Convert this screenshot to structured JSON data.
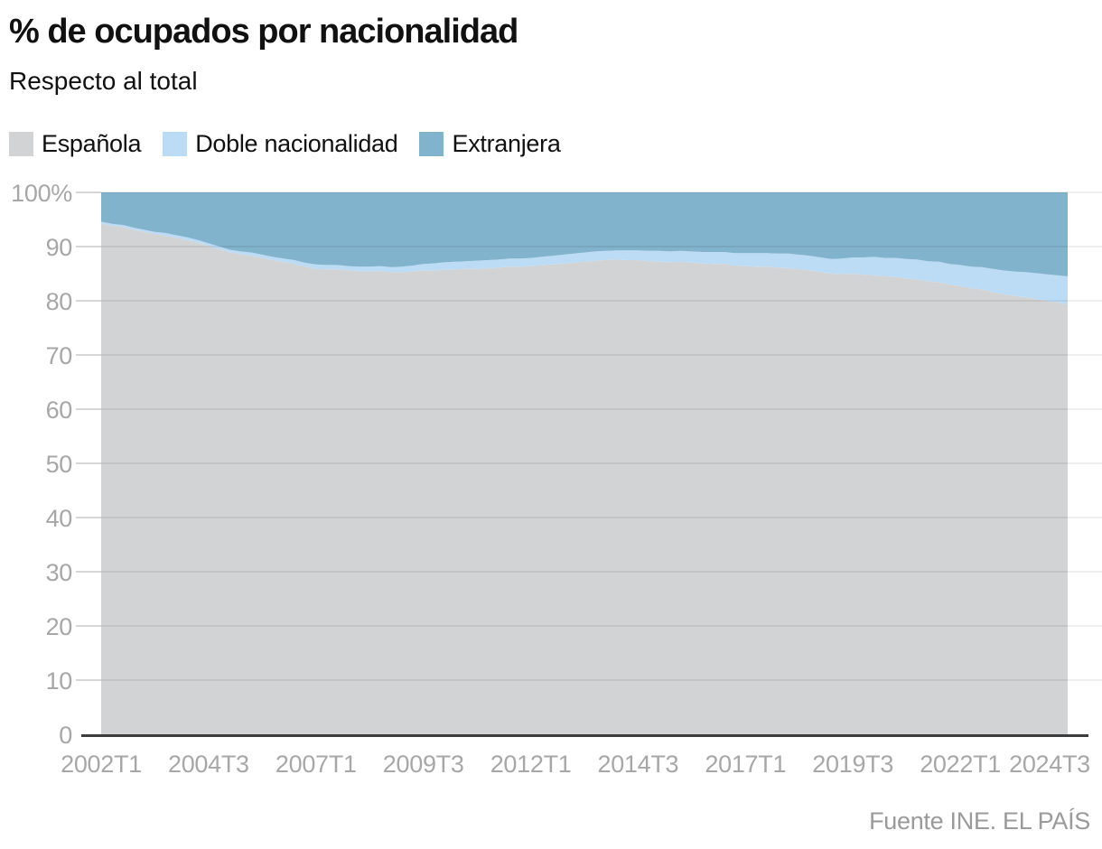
{
  "header": {
    "title": "% de ocupados por nacionalidad",
    "subtitle": "Respecto al total"
  },
  "legend": {
    "items": [
      {
        "label": "Española",
        "color": "#d2d3d4"
      },
      {
        "label": "Doble nacionalidad",
        "color": "#bcdcf5"
      },
      {
        "label": "Extranjera",
        "color": "#81b3cd"
      }
    ]
  },
  "footer": {
    "source": "Fuente INE. EL PAÍS"
  },
  "colors": {
    "axis_line": "#3c3c3c",
    "axis_label": "#a7a7a7",
    "tick": "#d6d6d6",
    "grid_overlay": "rgba(0,0,0,0.09)",
    "grid_right_margin": "#ebebeb"
  },
  "chart_data": {
    "type": "area",
    "stacked": true,
    "total": 100,
    "title": "% de ocupados por nacionalidad",
    "subtitle": "Respecto al total",
    "x_start": "2002T1",
    "x_end": "2024T3",
    "x_frequency": "quarterly",
    "points_count": 91,
    "ylim": [
      0,
      100
    ],
    "y_tick_labels": [
      "100%",
      "90",
      "80",
      "70",
      "60",
      "50",
      "40",
      "30",
      "20",
      "10",
      "0"
    ],
    "y_tick_values": [
      100,
      90,
      80,
      70,
      60,
      50,
      40,
      30,
      20,
      10,
      0
    ],
    "x_ticks": [
      {
        "label": "2002T1",
        "index": 0
      },
      {
        "label": "2004T3",
        "index": 10
      },
      {
        "label": "2007T1",
        "index": 20
      },
      {
        "label": "2009T3",
        "index": 30
      },
      {
        "label": "2012T1",
        "index": 40
      },
      {
        "label": "2014T3",
        "index": 50
      },
      {
        "label": "2017T1",
        "index": 60
      },
      {
        "label": "2019T3",
        "index": 70
      },
      {
        "label": "2022T1",
        "index": 80
      },
      {
        "label": "2024T3",
        "index": 90
      }
    ],
    "series": [
      {
        "name": "Española",
        "color": "#d2d3d4",
        "values": [
          94.2,
          93.8,
          93.6,
          93.1,
          92.7,
          92.3,
          92.0,
          91.6,
          91.2,
          90.7,
          90.1,
          89.5,
          88.9,
          88.6,
          88.3,
          87.9,
          87.5,
          87.1,
          86.8,
          86.3,
          85.9,
          85.8,
          85.8,
          85.6,
          85.5,
          85.4,
          85.5,
          85.3,
          85.3,
          85.4,
          85.6,
          85.6,
          85.7,
          85.8,
          85.9,
          85.9,
          86.0,
          86.1,
          86.3,
          86.3,
          86.4,
          86.6,
          86.7,
          86.9,
          87.0,
          87.2,
          87.4,
          87.5,
          87.6,
          87.5,
          87.5,
          87.3,
          87.2,
          87.1,
          87.2,
          87.0,
          86.9,
          86.8,
          86.8,
          86.5,
          86.4,
          86.3,
          86.3,
          86.1,
          86.0,
          85.8,
          85.6,
          85.3,
          85.0,
          84.9,
          85.0,
          84.8,
          84.7,
          84.5,
          84.4,
          84.1,
          83.9,
          83.6,
          83.4,
          83.0,
          82.7,
          82.3,
          82.1,
          81.6,
          81.2,
          80.9,
          80.7,
          80.3,
          80.0,
          79.7,
          79.3
        ]
      },
      {
        "name": "Doble nacionalidad",
        "color": "#bcdcf5",
        "values": [
          0.4,
          0.4,
          0.4,
          0.4,
          0.4,
          0.4,
          0.5,
          0.5,
          0.5,
          0.5,
          0.5,
          0.5,
          0.5,
          0.5,
          0.6,
          0.6,
          0.6,
          0.7,
          0.7,
          0.7,
          0.8,
          0.8,
          0.8,
          0.8,
          0.8,
          0.9,
          0.9,
          0.9,
          1.0,
          1.1,
          1.2,
          1.3,
          1.4,
          1.4,
          1.4,
          1.5,
          1.5,
          1.5,
          1.5,
          1.5,
          1.5,
          1.5,
          1.6,
          1.6,
          1.7,
          1.7,
          1.7,
          1.7,
          1.7,
          1.8,
          1.8,
          1.9,
          2.0,
          2.0,
          2.0,
          2.1,
          2.1,
          2.2,
          2.2,
          2.3,
          2.4,
          2.5,
          2.5,
          2.6,
          2.7,
          2.7,
          2.7,
          2.7,
          2.7,
          2.9,
          3.0,
          3.2,
          3.4,
          3.4,
          3.5,
          3.6,
          3.7,
          3.7,
          3.8,
          3.8,
          3.9,
          4.0,
          4.1,
          4.3,
          4.4,
          4.5,
          4.6,
          4.8,
          4.9,
          5.0,
          5.2
        ]
      },
      {
        "name": "Extranjera",
        "color": "#81b3cd",
        "values": "remainder_to_100"
      }
    ]
  }
}
